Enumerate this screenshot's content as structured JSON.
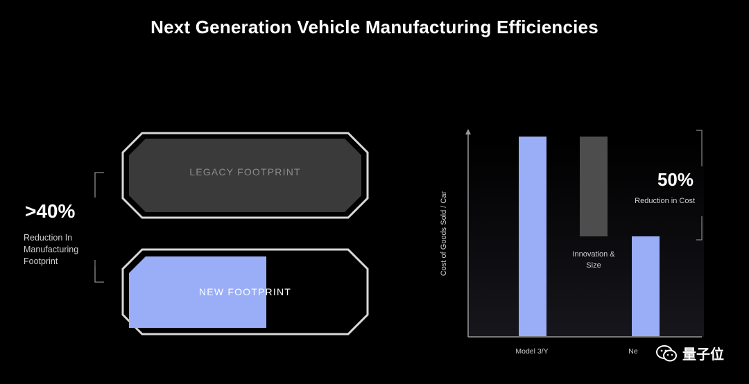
{
  "title": "Next Generation Vehicle Manufacturing Efficiencies",
  "left_panel": {
    "reduction_value": ">40%",
    "reduction_caption": [
      "Reduction In",
      "Manufacturing",
      "Footprint"
    ],
    "legacy_label": "LEGACY FOOTPRINT",
    "new_label": "NEW FOOTPRINT",
    "new_fill_fraction": 0.58
  },
  "chart_data": {
    "type": "bar",
    "ylabel": "Cost of Goods Sold / Car",
    "categories": [
      "Model 3/Y",
      "Ne"
    ],
    "bars": [
      {
        "category": "Model 3/Y",
        "base": 0,
        "value": 1.0,
        "color": "#9aaef8"
      },
      {
        "category": "Innovation & Size",
        "base": 0.5,
        "value": 1.0,
        "color": "#4d4d4d",
        "label": [
          "Innovation &",
          "Size"
        ]
      },
      {
        "category": "Ne",
        "base": 0,
        "value": 0.5,
        "color": "#9aaef8"
      }
    ],
    "ylim": [
      0,
      1.0
    ],
    "annotation_value": "50%",
    "annotation_caption": "Reduction in Cost"
  },
  "watermark": {
    "text": "量子位",
    "icon": "wechat-icon"
  },
  "colors": {
    "accent_blue": "#9aaef8",
    "legacy_fill": "#3a3a3a",
    "outline": "#d8d8d8"
  }
}
